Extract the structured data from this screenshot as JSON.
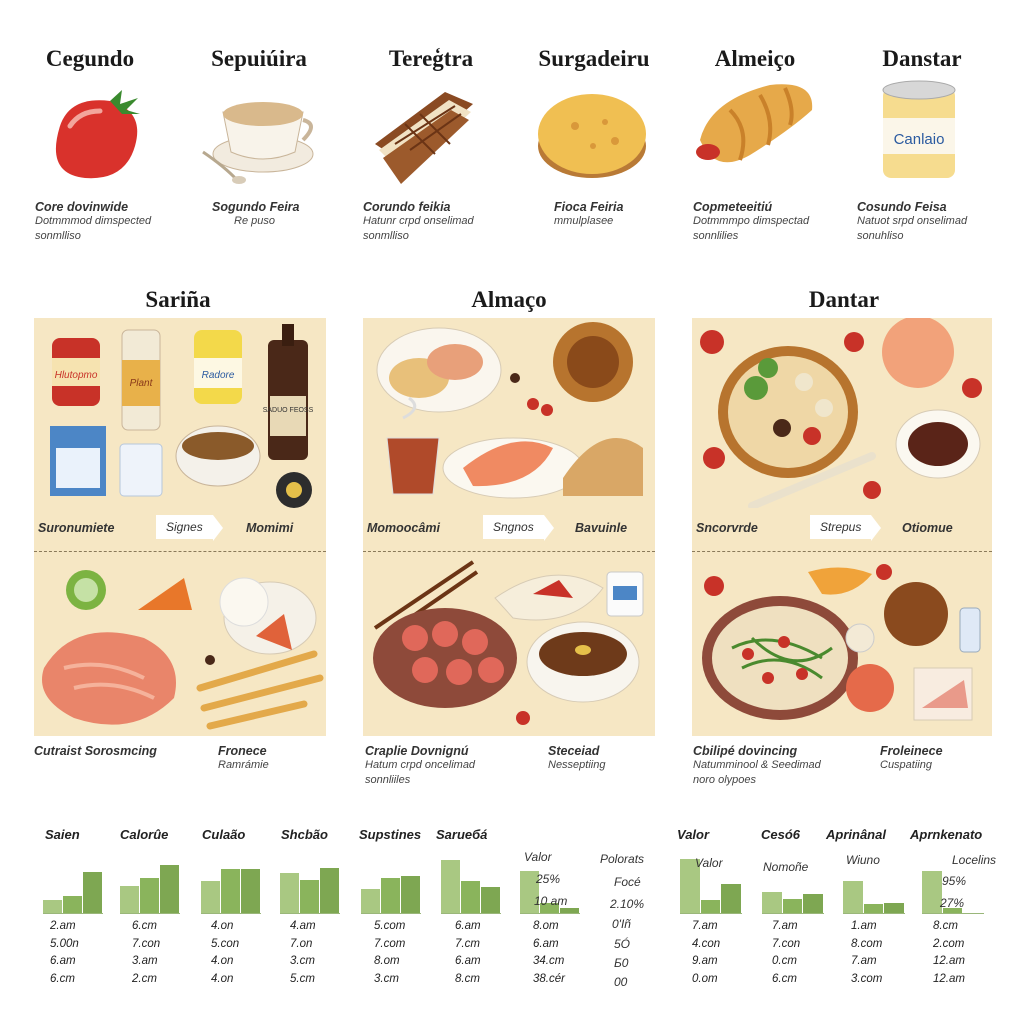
{
  "top_row": [
    {
      "title": "Cegundo",
      "cap_title": "Core dovinwide",
      "lines": [
        "Dotmmmod dimspected",
        "sonmlliso"
      ],
      "icon": "tomato-icon"
    },
    {
      "title": "Sepuiúira",
      "cap_title": "Sogundo Feira",
      "lines": [
        "Re puso"
      ],
      "icon": "coffee-cup-icon"
    },
    {
      "title": "Tereģtra",
      "cap_title": "Corundo feikia",
      "lines": [
        "Hatunr crpd onselimad",
        "sonmlliso"
      ],
      "icon": "sandwich-icon"
    },
    {
      "title": "Surgadeiru",
      "cap_title": "Fioca Feiria",
      "lines": [
        "mmulplasee"
      ],
      "icon": "bread-roll-icon"
    },
    {
      "title": "Almeiço",
      "cap_title": "Copmeteeitiú",
      "lines": [
        "Dotmmmpo dimspectad",
        "sonnlilies"
      ],
      "icon": "croissant-icon"
    },
    {
      "title": "Danstar",
      "cap_title": "Cosundo Feisa",
      "lines": [
        "Natuot srpd onselimad",
        "sonuhliso"
      ],
      "icon": "can-icon",
      "can_label": "Canlaio"
    }
  ],
  "sections": [
    {
      "title": "Sariña",
      "mid": {
        "left": "Suronumiete",
        "arrow": "Signes",
        "right": "Momimi"
      },
      "cap": {
        "left_title": "Cutraist Sorosmcing",
        "left_lines": [],
        "right_title": "Fronece",
        "right_lines": [
          "Ramrámie"
        ]
      },
      "labels": {
        "ketchup": "Hlutopmo",
        "bottle": "Plant",
        "jar": "Radore",
        "wine": "SADUO FEOSS"
      }
    },
    {
      "title": "Almaço",
      "mid": {
        "left": "Momoocâmi",
        "arrow": "Sngnos",
        "right": "Bavuinle"
      },
      "cap": {
        "left_title": "Craplie Dovnignú",
        "left_lines": [
          "Hatum crpd oncelimad",
          "sonnliiles"
        ],
        "right_title": "Steceiad",
        "right_lines": [
          "Nesseptiing"
        ]
      }
    },
    {
      "title": "Dantar",
      "mid": {
        "left": "Sncorvrde",
        "arrow": "Strepus",
        "right": "Otiomue"
      },
      "cap": {
        "left_title": "Cbilipé dovincing",
        "left_lines": [
          "Natumminool & Seedimad",
          "noro olypoes"
        ],
        "right_title": "Froleinece",
        "right_lines": [
          "Cuspatiing"
        ]
      }
    }
  ],
  "stats": {
    "headers": [
      "Saien",
      "Calorûe",
      "Culaão",
      "Shcbão",
      "Supstines",
      "Sarueбá",
      "Valor",
      "Cesó6",
      "Aprinânal",
      "Aprnkenato"
    ],
    "left_inset": {
      "title": "Valor",
      "v1": "25%",
      "v2": "10 am"
    },
    "mid_col": {
      "title": "Polorats",
      "v1": "Focé",
      "v2": "2.10%",
      "v3": "0'Iñ",
      "v4": "5Ó",
      "v5": "Б0",
      "v6": "00"
    },
    "right_inset1": {
      "title": "Valor"
    },
    "right_inset2": {
      "title": "Nomoñe"
    },
    "right_inset3": {
      "title": "Wiuno"
    },
    "right_inset4": {
      "title": "Locelins",
      "v1": "95%",
      "v2": "27%"
    },
    "columns": [
      [
        "2.am",
        "5.00n",
        "6.am",
        "6.cm"
      ],
      [
        "6.cm",
        "7.con",
        "3.am",
        "2.cm"
      ],
      [
        "4.on",
        "5.con",
        "4.on",
        "4.on"
      ],
      [
        "4.am",
        "7.on",
        "3.cm",
        "5.cm"
      ],
      [
        "5.com",
        "7.com",
        "8.om",
        "3.cm"
      ],
      [
        "6.am",
        "7.cm",
        "6.am",
        "8.cm"
      ],
      [
        "8.om",
        "6.am",
        "34.cm",
        "38.cér"
      ],
      [
        "7.am",
        "4.con",
        "9.am",
        "0.om"
      ],
      [
        "7.am",
        "7.con",
        "0.cm",
        "6.cm"
      ],
      [
        "1.am",
        "8.com",
        "7.am",
        "3.com"
      ],
      [
        "8.cm",
        "2.com",
        "12.am",
        "12.am"
      ]
    ]
  },
  "chart_data": [
    {
      "type": "bar",
      "series": [
        {
          "values": [
            1.3,
            1.8,
            4.2
          ]
        }
      ]
    },
    {
      "type": "bar",
      "series": [
        {
          "values": [
            2.8,
            3.6,
            5
          ]
        }
      ]
    },
    {
      "type": "bar",
      "series": [
        {
          "values": [
            3.3,
            4.6,
            4.6
          ]
        }
      ]
    },
    {
      "type": "bar",
      "series": [
        {
          "values": [
            4.1,
            3.4,
            4.7
          ]
        }
      ]
    },
    {
      "type": "bar",
      "series": [
        {
          "values": [
            2.5,
            3.6,
            3.8
          ]
        }
      ]
    },
    {
      "type": "bar",
      "series": [
        {
          "values": [
            5.5,
            3.3,
            2.7
          ]
        }
      ]
    },
    {
      "type": "bar",
      "series": [
        {
          "values": [
            4.3,
            1,
            0.5
          ]
        }
      ]
    },
    {
      "type": "bar",
      "series": [
        {
          "values": [
            5.6,
            1.3,
            3
          ]
        }
      ]
    },
    {
      "type": "bar",
      "series": [
        {
          "values": [
            2.2,
            1.4,
            2
          ]
        }
      ]
    },
    {
      "type": "bar",
      "series": [
        {
          "values": [
            3.3,
            0.9,
            1
          ]
        }
      ]
    },
    {
      "type": "bar",
      "series": [
        {
          "values": [
            4.3,
            0.5
          ]
        }
      ]
    }
  ]
}
